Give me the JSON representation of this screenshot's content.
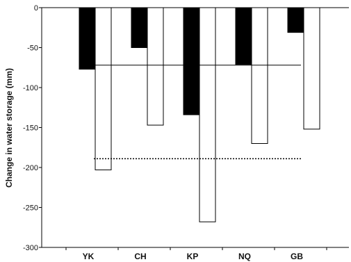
{
  "chart_data": {
    "type": "bar",
    "title": "",
    "xlabel": "",
    "ylabel": "Change in water storage (mm)",
    "categories": [
      "YK",
      "CH",
      "KP",
      "NQ",
      "GB"
    ],
    "series": [
      {
        "values": [
          -77,
          -50,
          -134,
          -71,
          -31
        ],
        "color": "#000000"
      },
      {
        "values": [
          -203,
          -147,
          -268,
          -170,
          -152
        ],
        "color": "#ffffff"
      }
    ],
    "ylim": [
      -300,
      0
    ],
    "yticks": [
      0,
      -50,
      -100,
      -150,
      -200,
      -250,
      -300
    ],
    "ytick_labels": [
      "0",
      "-50",
      "-100",
      "-150",
      "-200",
      "-250",
      "-300"
    ],
    "reference_lines": [
      {
        "value": -72,
        "style": "solid"
      },
      {
        "value": -189,
        "style": "dotted"
      }
    ],
    "grid": false,
    "legend": "none"
  }
}
